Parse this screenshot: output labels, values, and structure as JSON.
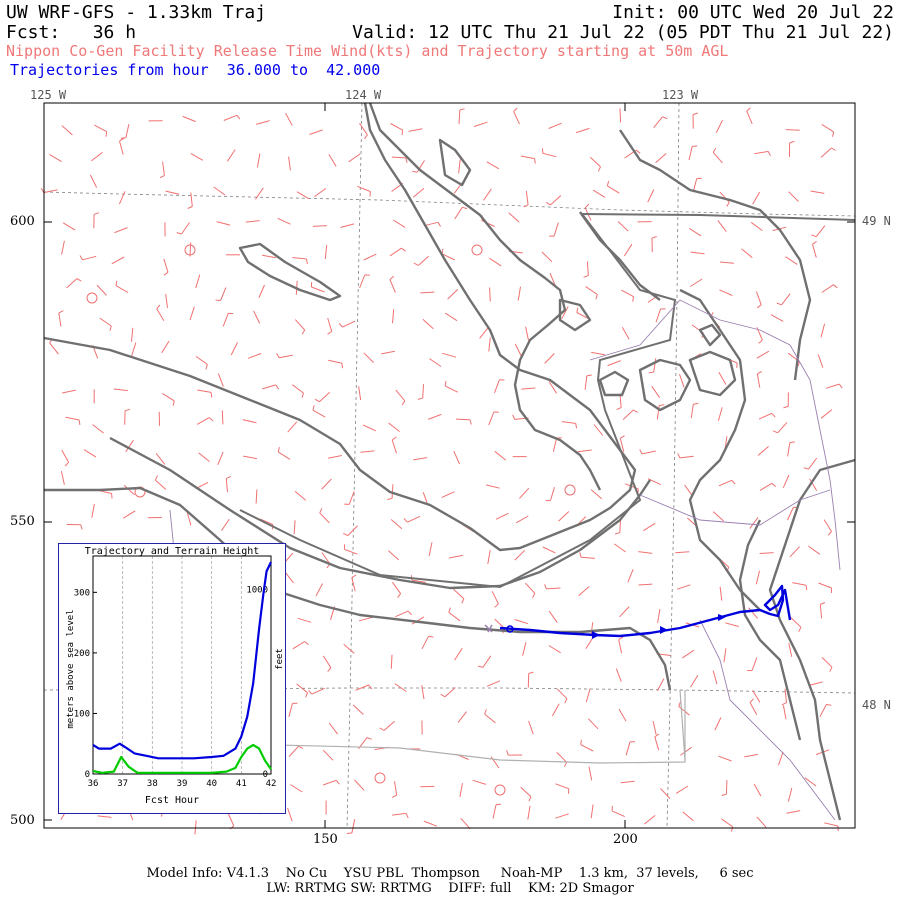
{
  "header": {
    "title": "UW WRF-GFS - 1.33km Traj",
    "init": "Init: 00 UTC Wed 20 Jul 22",
    "fcst_label": "Fcst:   36 h",
    "valid": "Valid: 12 UTC Thu 21 Jul 22 (05 PDT Thu 21 Jul 22)",
    "subtitle": "Nippon Co-Gen Facility Release Time Wind(kts) and Trajectory starting at 50m AGL",
    "traj_hours": "Trajectories from hour  36.000 to  42.000"
  },
  "map": {
    "lon_labels": [
      "125 W",
      "124 W",
      "123 W"
    ],
    "lat_labels": [
      "49 N",
      "48 N"
    ],
    "y_ticks": [
      "600",
      "550",
      "500"
    ],
    "x_ticks": [
      "150",
      "200"
    ],
    "colors": {
      "coast": "#707070",
      "wind_barb": "#f07070",
      "trajectory": "#0000dd",
      "border": "#9a7fb0",
      "grid": "#808080"
    }
  },
  "inset": {
    "title": "Trajectory and Terrain Height",
    "ylabel_left": "meters above sea level",
    "ylabel_right": "feet",
    "xlabel": "Fcst Hour",
    "x_ticks": [
      "36",
      "37",
      "38",
      "39",
      "40",
      "41",
      "42"
    ],
    "y_ticks_left": [
      "0",
      "100",
      "200",
      "300"
    ],
    "y_ticks_right": [
      "0",
      "1000"
    ]
  },
  "chart_data": {
    "type": "line",
    "title": "Trajectory and Terrain Height",
    "xlabel": "Fcst Hour",
    "ylabel": "meters above sea level",
    "xlim": [
      36,
      42
    ],
    "ylim": [
      0,
      360
    ],
    "series": [
      {
        "color": "#0000dd",
        "x": [
          36,
          36.2,
          36.6,
          36.9,
          37.1,
          37.4,
          37.8,
          38.2,
          38.8,
          39.4,
          40.0,
          40.4,
          40.8,
          41.0,
          41.2,
          41.4,
          41.6,
          41.75,
          41.85,
          42.0
        ],
        "y": [
          48,
          42,
          42,
          50,
          44,
          34,
          30,
          26,
          26,
          26,
          28,
          30,
          42,
          62,
          95,
          150,
          240,
          300,
          335,
          350
        ]
      },
      {
        "color": "#00cc00",
        "x": [
          36,
          36.3,
          36.7,
          36.95,
          37.2,
          37.5,
          38.0,
          39.0,
          40.0,
          40.5,
          40.8,
          41.0,
          41.2,
          41.4,
          41.6,
          41.8,
          42.0
        ],
        "y": [
          5,
          2,
          4,
          28,
          12,
          2,
          2,
          2,
          2,
          4,
          10,
          28,
          42,
          48,
          42,
          22,
          8
        ]
      }
    ]
  },
  "footer": {
    "line1": "Model Info: V4.1.3    No Cu    YSU PBL  Thompson     Noah-MP    1.3 km,  37 levels,     6 sec",
    "line2": "LW: RRTMG SW: RRTMG    DIFF: full    KM: 2D Smagor"
  }
}
